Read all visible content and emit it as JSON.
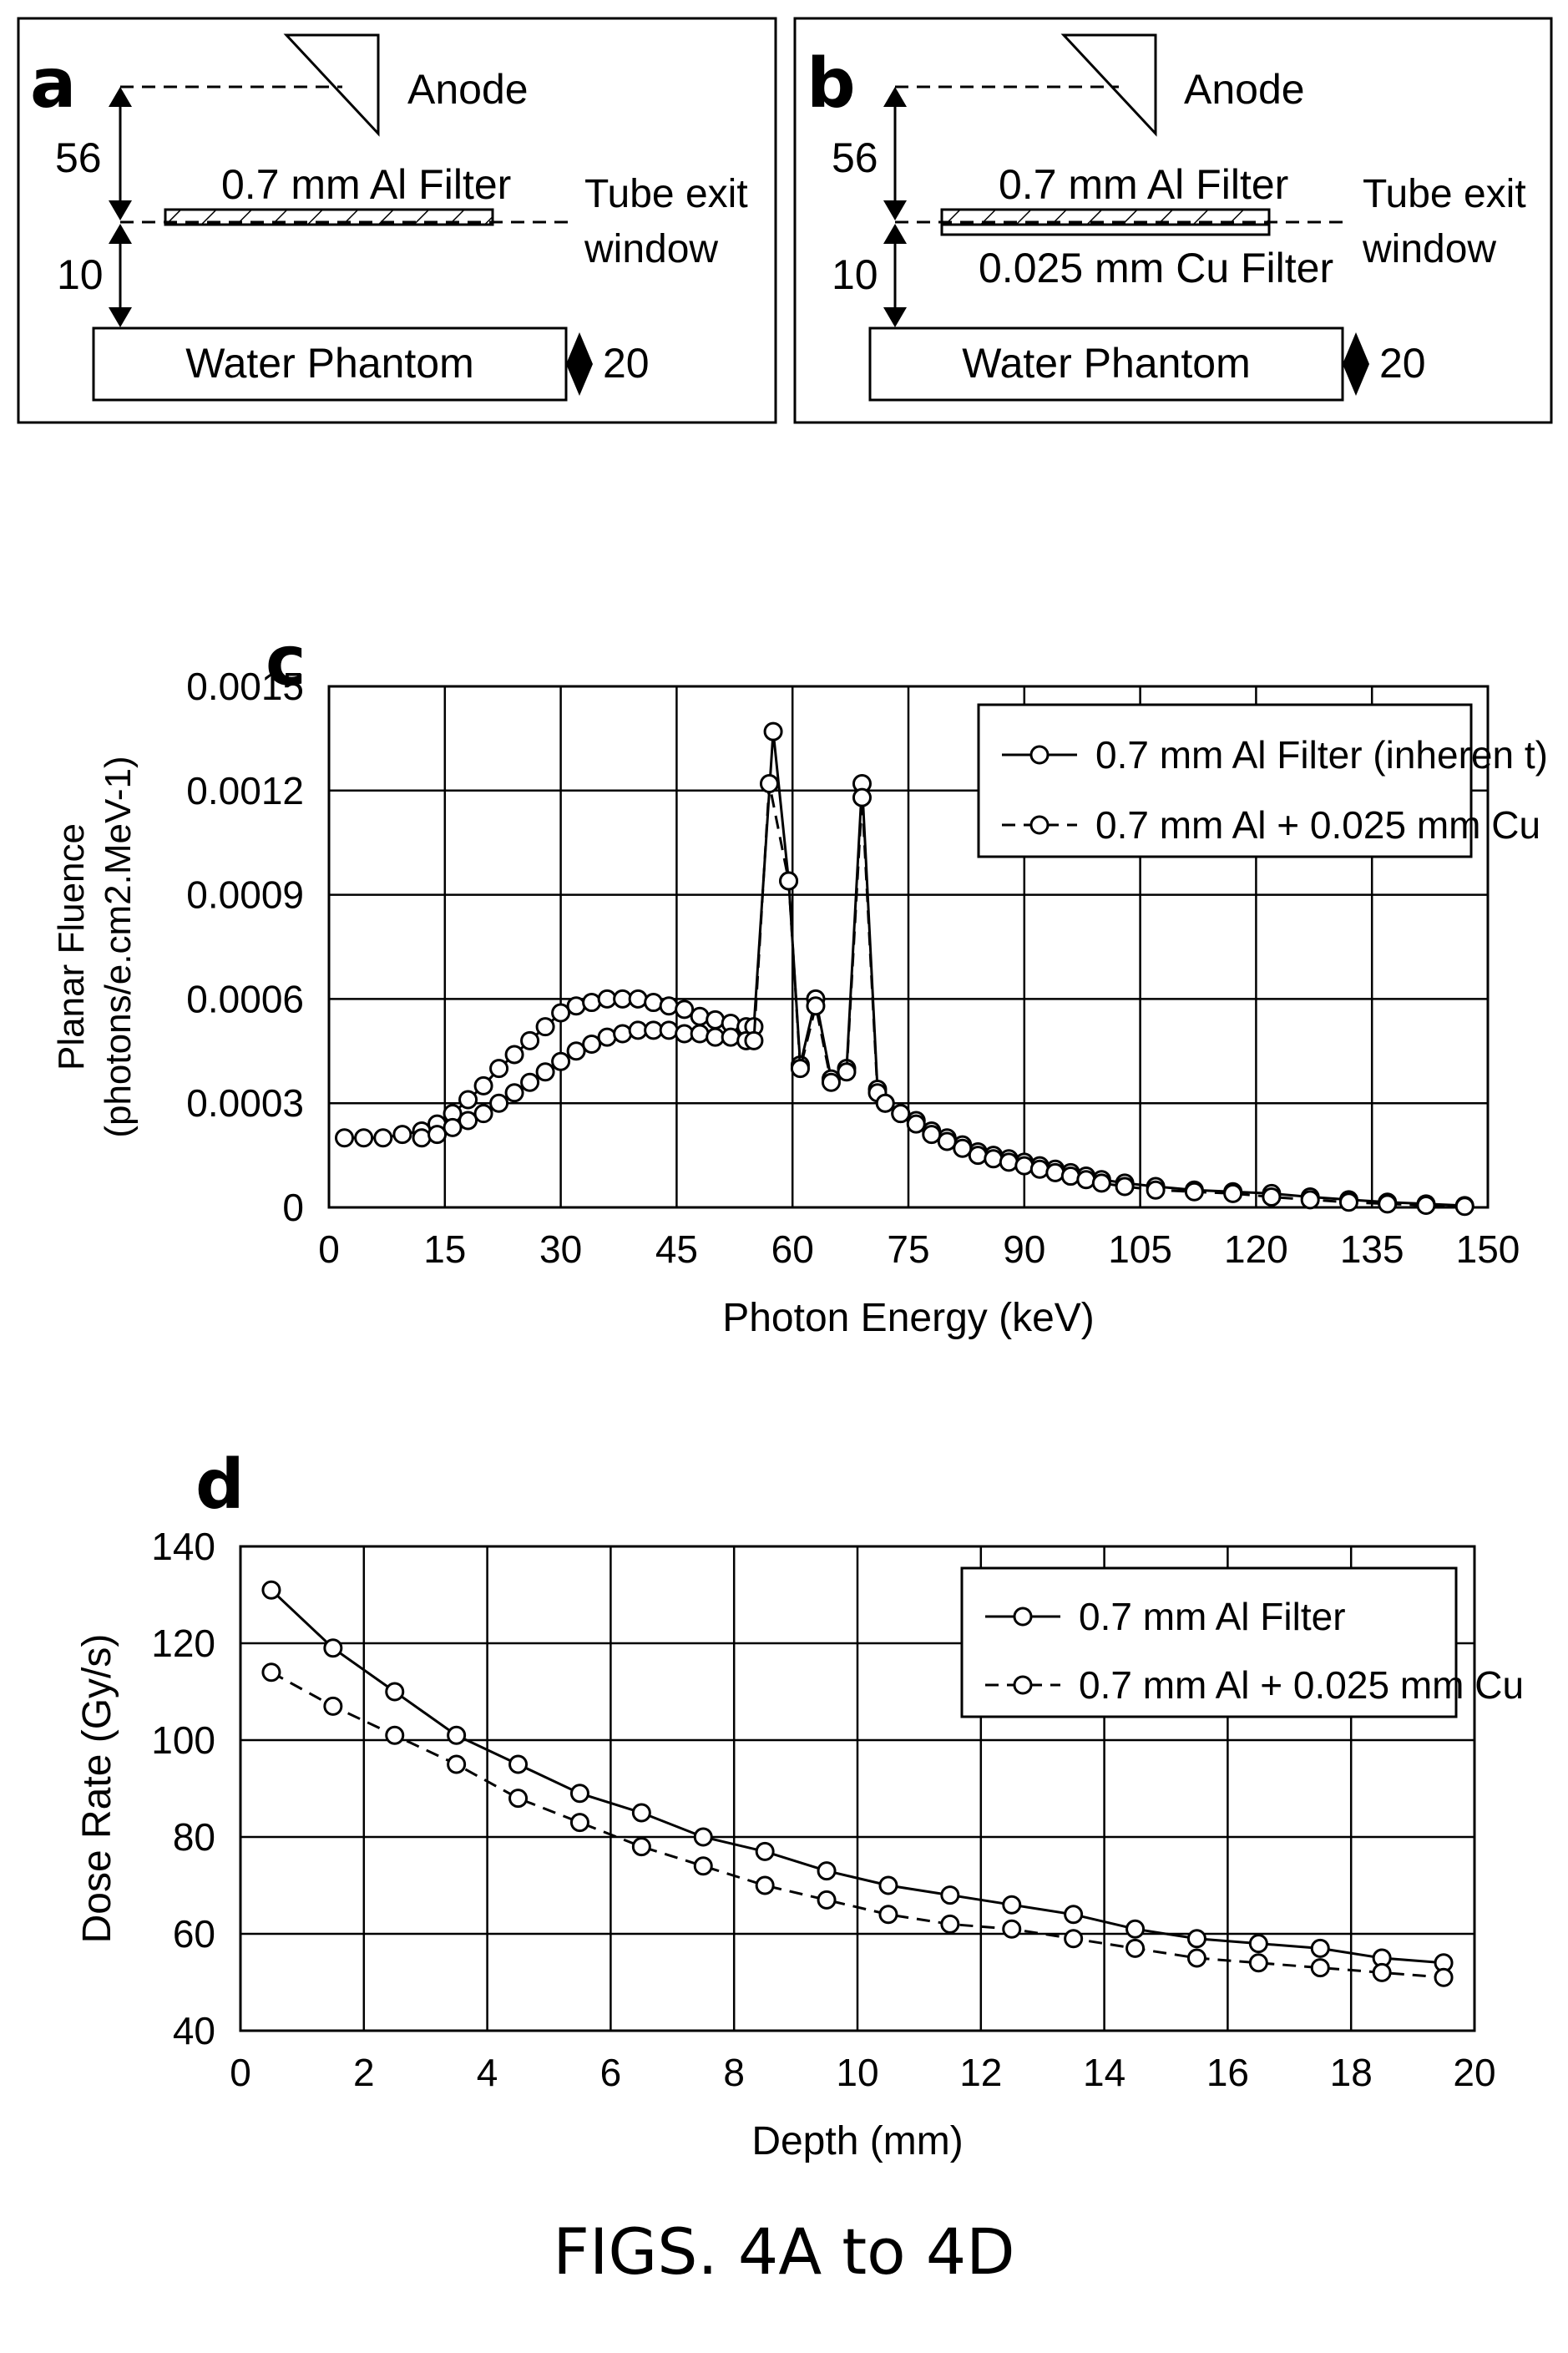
{
  "panel_a": {
    "letter": "a",
    "anode": "Anode",
    "dim_top": "56",
    "filter": "0.7 mm Al Filter",
    "window": [
      "Tube exit",
      "window"
    ],
    "dim_bottom": "10",
    "phantom": "Water Phantom",
    "dim_phantom": "20"
  },
  "panel_b": {
    "letter": "b",
    "anode": "Anode",
    "dim_top": "56",
    "filter": "0.7 mm Al Filter",
    "filter2": "0.025 mm Cu Filter",
    "window": [
      "Tube exit",
      "window"
    ],
    "dim_bottom": "10",
    "phantom": "Water Phantom",
    "dim_phantom": "20"
  },
  "chart_data": [
    {
      "panel": "c",
      "type": "line",
      "xlabel": "Photon Energy (keV)",
      "ylabel": [
        "Planar Fluence",
        "(photons/e.cm2.MeV-1)"
      ],
      "xlim": [
        0,
        150
      ],
      "ylim": [
        0,
        0.0015
      ],
      "xticks": [
        0,
        15,
        30,
        45,
        60,
        75,
        90,
        105,
        120,
        135,
        150
      ],
      "yticks": [
        0,
        0.0003,
        0.0006,
        0.0009,
        0.0012,
        0.0015
      ],
      "ytick_labels": [
        "0",
        "0.0003",
        "0.0006",
        "0.0009",
        "0.0012",
        "0.0015"
      ],
      "grid": true,
      "legend_position": "top-right",
      "series": [
        {
          "name": "0.7 mm Al Filter (inheren t)",
          "style": "solid",
          "x": [
            2,
            4.5,
            7,
            9.5,
            12,
            14,
            16,
            18,
            20,
            22,
            24,
            26,
            28,
            30,
            32,
            34,
            36,
            38,
            40,
            42,
            44,
            46,
            48,
            50,
            52,
            54,
            55,
            57.5,
            59.5,
            61,
            63,
            65,
            67,
            69,
            71,
            72,
            74,
            76,
            78,
            80,
            82,
            84,
            86,
            88,
            90,
            92,
            94,
            96,
            98,
            100,
            103,
            107,
            112,
            117,
            122,
            127,
            132,
            137,
            142,
            147
          ],
          "y": [
            0.0002,
            0.0002,
            0.0002,
            0.00021,
            0.00022,
            0.00024,
            0.00027,
            0.00031,
            0.00035,
            0.0004,
            0.00044,
            0.00048,
            0.00052,
            0.00056,
            0.00058,
            0.00059,
            0.0006,
            0.0006,
            0.0006,
            0.00059,
            0.00058,
            0.00057,
            0.00055,
            0.00054,
            0.00053,
            0.00052,
            0.00052,
            0.00137,
            0.00094,
            0.00041,
            0.0006,
            0.00037,
            0.0004,
            0.00122,
            0.00034,
            0.0003,
            0.00027,
            0.00025,
            0.00022,
            0.0002,
            0.00018,
            0.00016,
            0.00015,
            0.00014,
            0.00013,
            0.00012,
            0.00011,
            0.0001,
            9e-05,
            8e-05,
            7e-05,
            6e-05,
            5e-05,
            4.5e-05,
            4e-05,
            3e-05,
            2.2e-05,
            1.5e-05,
            1e-05,
            5e-06
          ]
        },
        {
          "name": "0.7 mm Al + 0.025 mm Cu",
          "style": "dashed",
          "x": [
            12,
            14,
            16,
            18,
            20,
            22,
            24,
            26,
            28,
            30,
            32,
            34,
            36,
            38,
            40,
            42,
            44,
            46,
            48,
            50,
            52,
            54,
            55,
            57,
            59.5,
            61,
            63,
            65,
            67,
            69,
            71,
            72,
            74,
            76,
            78,
            80,
            82,
            84,
            86,
            88,
            90,
            92,
            94,
            96,
            98,
            100,
            103,
            107,
            112,
            117,
            122,
            127,
            132,
            137,
            142,
            147
          ],
          "y": [
            0.0002,
            0.00021,
            0.00023,
            0.00025,
            0.00027,
            0.0003,
            0.00033,
            0.00036,
            0.00039,
            0.00042,
            0.00045,
            0.00047,
            0.00049,
            0.0005,
            0.00051,
            0.00051,
            0.00051,
            0.0005,
            0.0005,
            0.00049,
            0.00049,
            0.00048,
            0.00048,
            0.00122,
            0.00094,
            0.0004,
            0.00058,
            0.00036,
            0.00039,
            0.00118,
            0.00033,
            0.0003,
            0.00027,
            0.00024,
            0.00021,
            0.00019,
            0.00017,
            0.00015,
            0.00014,
            0.00013,
            0.00012,
            0.00011,
            0.0001,
            9e-05,
            8e-05,
            7e-05,
            6e-05,
            5e-05,
            4.5e-05,
            4e-05,
            3e-05,
            2.2e-05,
            1.5e-05,
            1e-05,
            6e-06,
            3e-06
          ]
        }
      ]
    },
    {
      "panel": "d",
      "type": "line",
      "xlabel": "Depth (mm)",
      "ylabel": "Dose Rate (Gy/s)",
      "xlim": [
        0,
        20
      ],
      "ylim": [
        40,
        140
      ],
      "xticks": [
        0,
        2,
        4,
        6,
        8,
        10,
        12,
        14,
        16,
        18,
        20
      ],
      "yticks": [
        40,
        60,
        80,
        100,
        120,
        140
      ],
      "ytick_labels": [
        "40",
        "60",
        "80",
        "100",
        "120",
        "140"
      ],
      "grid": true,
      "legend_position": "top-right",
      "series": [
        {
          "name": "0.7 mm Al Filter",
          "style": "solid",
          "x": [
            0.5,
            1.5,
            2.5,
            3.5,
            4.5,
            5.5,
            6.5,
            7.5,
            8.5,
            9.5,
            10.5,
            11.5,
            12.5,
            13.5,
            14.5,
            15.5,
            16.5,
            17.5,
            18.5,
            19.5
          ],
          "y": [
            131,
            119,
            110,
            101,
            95,
            89,
            85,
            80,
            77,
            73,
            70,
            68,
            66,
            64,
            61,
            59,
            58,
            57,
            55,
            54
          ]
        },
        {
          "name": "0.7 mm Al + 0.025 mm Cu",
          "style": "dashed",
          "x": [
            0.5,
            1.5,
            2.5,
            3.5,
            4.5,
            5.5,
            6.5,
            7.5,
            8.5,
            9.5,
            10.5,
            11.5,
            12.5,
            13.5,
            14.5,
            15.5,
            16.5,
            17.5,
            18.5,
            19.5
          ],
          "y": [
            114,
            107,
            101,
            95,
            88,
            83,
            78,
            74,
            70,
            67,
            64,
            62,
            61,
            59,
            57,
            55,
            54,
            53,
            52,
            51
          ]
        }
      ]
    }
  ],
  "caption": "FIGS. 4A to 4D"
}
